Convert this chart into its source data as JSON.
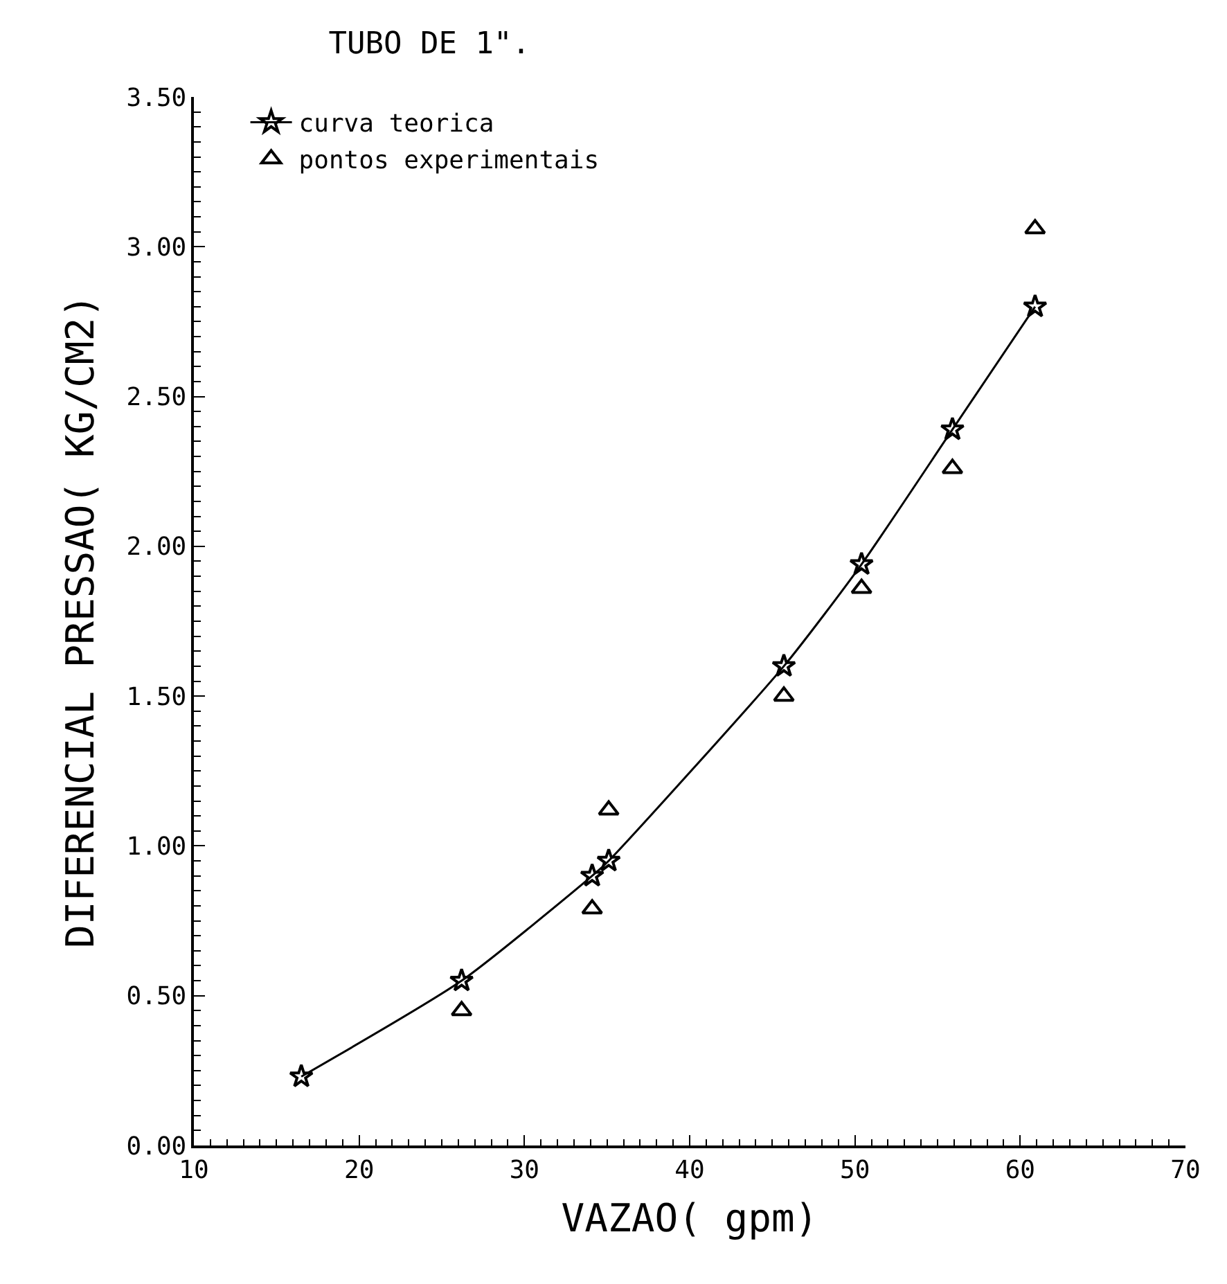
{
  "chart_data": {
    "type": "line",
    "title": "TUBO DE 1\".",
    "xlabel": "VAZAO( gpm)",
    "ylabel": "DIFERENCIAL PRESSAO( KG/CM2)",
    "series": [
      {
        "name": "curva teorica",
        "color": "#000000",
        "marker": "star",
        "x": [
          16.5,
          26.2,
          34.1,
          35.1,
          45.7,
          50.4,
          55.9,
          60.9
        ],
        "values": [
          0.23,
          0.55,
          0.9,
          0.95,
          1.6,
          1.94,
          2.39,
          2.8
        ]
      },
      {
        "name": "pontos experimentais",
        "type": "scatter",
        "color": "#000000",
        "marker": "triangle",
        "x": [
          26.2,
          34.1,
          35.1,
          45.7,
          50.4,
          55.9,
          60.9
        ],
        "values": [
          0.45,
          0.79,
          1.12,
          1.5,
          1.86,
          2.26,
          3.06
        ]
      }
    ],
    "xlim": [
      10,
      70
    ],
    "xticks": [
      10,
      20,
      30,
      40,
      50,
      60,
      70
    ],
    "ylim": [
      0,
      3.5
    ],
    "yticks": [
      {
        "value": 0,
        "label": "0.00"
      },
      {
        "value": 0.5,
        "label": "0.50"
      },
      {
        "value": 1,
        "label": "1.00"
      },
      {
        "value": 1.5,
        "label": "1.50"
      },
      {
        "value": 2,
        "label": "2.00"
      },
      {
        "value": 2.5,
        "label": "2.50"
      },
      {
        "value": 3,
        "label": "3.00"
      },
      {
        "value": 3.5,
        "label": "3.50"
      }
    ],
    "legend": "top left"
  }
}
